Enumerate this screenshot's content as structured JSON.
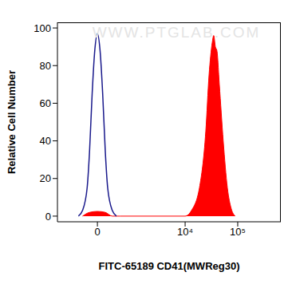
{
  "chart_data": {
    "type": "line",
    "xlabel": "FITC-65189 CD41(MWReg30)",
    "ylabel": "Relative Cell Number",
    "annotations": [
      "WWW.PTGLAB.COM"
    ],
    "log": "x",
    "xlim": [
      -1200,
      660000
    ],
    "xticks": [
      0,
      {
        "value": 10000,
        "label": "10⁴"
      },
      {
        "value": 100000,
        "label": "10⁵"
      }
    ],
    "ylim": [
      -3,
      103
    ],
    "yticks": [
      0,
      20,
      40,
      60,
      80,
      100
    ],
    "series": [
      {
        "type": "line",
        "color": "#1a1a8c",
        "x": [
          -400,
          -300,
          -200,
          -150,
          -100,
          -50,
          0,
          50,
          100,
          150,
          200,
          300,
          400
        ],
        "values": [
          0,
          3,
          15,
          35,
          65,
          88,
          97,
          88,
          65,
          35,
          15,
          3,
          0
        ]
      },
      {
        "type": "area",
        "color": "#ff0000",
        "x": [
          -300,
          -150,
          0,
          150,
          300,
          500,
          10000,
          13200,
          18700,
          24700,
          28500,
          32700,
          35000,
          37600,
          40200,
          44700,
          53000,
          63600,
          75300,
          89900
        ],
        "values": [
          0,
          2,
          2.5,
          2,
          0,
          0,
          0,
          3,
          15,
          45,
          75,
          92,
          96,
          90,
          88,
          70,
          40,
          15,
          4,
          0
        ]
      }
    ]
  }
}
